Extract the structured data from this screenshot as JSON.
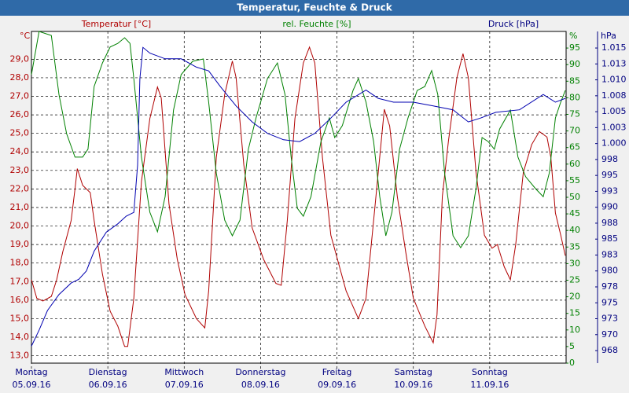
{
  "chart_data": {
    "type": "line",
    "title": "Temperatur, Feuchte & Druck",
    "grid": true,
    "xlim": [
      0,
      7
    ],
    "xticks": [
      {
        "value": 0,
        "label": "Montag"
      },
      {
        "value": 1,
        "label": "Dienstag"
      },
      {
        "value": 2,
        "label": "Mittwoch"
      },
      {
        "value": 3,
        "label": "Donnerstag"
      },
      {
        "value": 4,
        "label": "Freitag"
      },
      {
        "value": 5,
        "label": "Samstag"
      },
      {
        "value": 6,
        "label": "Sonntag"
      }
    ],
    "xtick_dates": [
      "05.09.16",
      "06.09.16",
      "07.09.16",
      "08.09.16",
      "09.09.16",
      "10.09.16",
      "11.09.16"
    ],
    "y_unit": "°C",
    "y2_unit": "%",
    "y3_unit": "hPa",
    "ylim": [
      12.6,
      30.5
    ],
    "yticks": [
      {
        "value": 13,
        "label": "13,0"
      },
      {
        "value": 14,
        "label": "14,0"
      },
      {
        "value": 15,
        "label": "15,0"
      },
      {
        "value": 16,
        "label": "16,0"
      },
      {
        "value": 17,
        "label": "17,0"
      },
      {
        "value": 18,
        "label": "18,0"
      },
      {
        "value": 19,
        "label": "19,0"
      },
      {
        "value": 20,
        "label": "20,0"
      },
      {
        "value": 21,
        "label": "21,0"
      },
      {
        "value": 22,
        "label": "22,0"
      },
      {
        "value": 23,
        "label": "23,0"
      },
      {
        "value": 24,
        "label": "24,0"
      },
      {
        "value": 25,
        "label": "25,0"
      },
      {
        "value": 26,
        "label": "26,0"
      },
      {
        "value": 27,
        "label": "27,0"
      },
      {
        "value": 28,
        "label": "28,0"
      },
      {
        "value": 29,
        "label": "29,0"
      }
    ],
    "y2lim": [
      0,
      100
    ],
    "y2ticks": [
      0,
      5,
      10,
      15,
      20,
      25,
      30,
      35,
      40,
      45,
      50,
      55,
      60,
      65,
      70,
      75,
      80,
      85,
      90,
      95
    ],
    "y3lim": [
      965.53,
      1017.6
    ],
    "y3ticks": [
      {
        "value": 967.5,
        "label": "968"
      },
      {
        "value": 970,
        "label": "970"
      },
      {
        "value": 972.5,
        "label": "973"
      },
      {
        "value": 975,
        "label": "975"
      },
      {
        "value": 977.5,
        "label": "978"
      },
      {
        "value": 980,
        "label": "980"
      },
      {
        "value": 982.5,
        "label": "983"
      },
      {
        "value": 985,
        "label": "985"
      },
      {
        "value": 987.5,
        "label": "988"
      },
      {
        "value": 990,
        "label": "990"
      },
      {
        "value": 992.5,
        "label": "993"
      },
      {
        "value": 995,
        "label": "995"
      },
      {
        "value": 997.5,
        "label": "998"
      },
      {
        "value": 1000,
        "label": "1.000"
      },
      {
        "value": 1002.5,
        "label": "1.003"
      },
      {
        "value": 1005,
        "label": "1.005"
      },
      {
        "value": 1007.5,
        "label": "1.008"
      },
      {
        "value": 1010,
        "label": "1.010"
      },
      {
        "value": 1012.5,
        "label": "1.013"
      },
      {
        "value": 1015,
        "label": "1.015"
      }
    ],
    "series": [
      {
        "name": "Temperatur [°C]",
        "color": "#b00000",
        "axis": "y",
        "x": [
          0,
          0.07,
          0.15,
          0.26,
          0.33,
          0.41,
          0.52,
          0.57,
          0.6,
          0.67,
          0.77,
          0.82,
          0.93,
          1.03,
          1.13,
          1.22,
          1.26,
          1.34,
          1.44,
          1.55,
          1.65,
          1.7,
          1.8,
          1.91,
          2.01,
          2.16,
          2.27,
          2.32,
          2.42,
          2.53,
          2.63,
          2.68,
          2.78,
          2.89,
          3.04,
          3.2,
          3.27,
          3.35,
          3.45,
          3.56,
          3.64,
          3.71,
          3.81,
          3.92,
          4.12,
          4.28,
          4.38,
          4.48,
          4.62,
          4.69,
          4.79,
          4.9,
          5.0,
          5.15,
          5.26,
          5.31,
          5.38,
          5.46,
          5.57,
          5.65,
          5.72,
          5.82,
          5.93,
          6.03,
          6.1,
          6.19,
          6.27,
          6.34,
          6.44,
          6.55,
          6.65,
          6.75,
          6.8,
          6.86,
          6.93,
          6.99
        ],
        "values": [
          17.1,
          16.1,
          15.95,
          16.2,
          17.1,
          18.6,
          20.3,
          22.0,
          23.1,
          22.2,
          21.8,
          20.3,
          17.4,
          15.4,
          14.6,
          13.5,
          13.5,
          16.1,
          22.4,
          25.8,
          27.5,
          26.9,
          21.2,
          18.2,
          16.3,
          15.0,
          14.5,
          16.5,
          23.7,
          27.1,
          28.9,
          28.0,
          23.3,
          19.9,
          18.2,
          16.9,
          16.8,
          20.3,
          25.8,
          28.8,
          29.65,
          28.8,
          23.7,
          19.5,
          16.5,
          15.0,
          16.1,
          20.3,
          26.3,
          25.4,
          21.6,
          18.6,
          16.1,
          14.6,
          13.7,
          15.2,
          21.6,
          24.6,
          28.0,
          29.3,
          28.0,
          22.9,
          19.5,
          18.8,
          19.0,
          17.8,
          17.1,
          19.0,
          22.9,
          24.4,
          25.1,
          24.8,
          23.7,
          20.7,
          19.5,
          18.4
        ]
      },
      {
        "name": "rel. Feuchte [%]",
        "color": "#008000",
        "axis": "y2",
        "x": [
          0,
          0.1,
          0.26,
          0.36,
          0.46,
          0.57,
          0.67,
          0.74,
          0.82,
          0.93,
          1.03,
          1.13,
          1.22,
          1.29,
          1.34,
          1.44,
          1.55,
          1.65,
          1.75,
          1.86,
          1.96,
          2.11,
          2.25,
          2.32,
          2.42,
          2.53,
          2.63,
          2.73,
          2.84,
          2.94,
          3.09,
          3.22,
          3.32,
          3.4,
          3.48,
          3.56,
          3.66,
          3.79,
          3.9,
          3.97,
          4.07,
          4.21,
          4.28,
          4.38,
          4.48,
          4.56,
          4.64,
          4.72,
          4.82,
          4.93,
          5.05,
          5.15,
          5.24,
          5.32,
          5.41,
          5.52,
          5.62,
          5.72,
          5.82,
          5.9,
          5.98,
          6.06,
          6.13,
          6.27,
          6.37,
          6.47,
          6.6,
          6.7,
          6.78,
          6.86,
          6.93,
          6.99
        ],
        "values": [
          87,
          100,
          98.8,
          81,
          69.2,
          62.1,
          62.1,
          64.5,
          83.4,
          90.5,
          95.3,
          96.4,
          98.1,
          96.4,
          85.8,
          62.1,
          45.5,
          39.6,
          50.2,
          76.3,
          87,
          91,
          91.7,
          78.7,
          57.3,
          43.1,
          38.4,
          43.1,
          64.5,
          73.9,
          85.8,
          90.5,
          81,
          62.1,
          46.7,
          44.3,
          50.2,
          66.8,
          73.9,
          68,
          71.6,
          82.2,
          85.8,
          78.7,
          66.8,
          50.2,
          38.4,
          45.5,
          64.5,
          73.9,
          82.2,
          83.4,
          88.2,
          81,
          57.3,
          38.4,
          34.8,
          38.4,
          52.6,
          68,
          66.8,
          64.5,
          70.6,
          76.3,
          62.1,
          56.2,
          52.6,
          50.2,
          57.3,
          73.9,
          78.7,
          82.2
        ]
      },
      {
        "name": "Druck [hPa]",
        "color": "#0000b0",
        "axis": "y3",
        "x": [
          0,
          0.1,
          0.21,
          0.36,
          0.52,
          0.62,
          0.72,
          0.82,
          0.98,
          1.13,
          1.24,
          1.34,
          1.39,
          1.42,
          1.46,
          1.55,
          1.75,
          1.96,
          2.16,
          2.32,
          2.47,
          2.68,
          2.89,
          3.09,
          3.3,
          3.51,
          3.71,
          3.92,
          4.12,
          4.38,
          4.54,
          4.74,
          5.0,
          5.26,
          5.52,
          5.72,
          5.88,
          6.08,
          6.39,
          6.7,
          6.86,
          6.99
        ],
        "values": [
          968.2,
          970.7,
          973.8,
          976.3,
          978.1,
          978.7,
          980,
          983.1,
          986.1,
          987.4,
          988.6,
          989.2,
          996.6,
          1010.2,
          1015.1,
          1014.2,
          1013.3,
          1013.3,
          1012.0,
          1011.4,
          1009.0,
          1005.9,
          1003.4,
          1001.6,
          1000.6,
          1000.3,
          1001.6,
          1004.0,
          1006.5,
          1008.4,
          1007.1,
          1006.5,
          1006.5,
          1005.9,
          1005.3,
          1003.4,
          1004.0,
          1004.9,
          1005.3,
          1007.7,
          1006.5,
          1007.1
        ]
      }
    ]
  }
}
